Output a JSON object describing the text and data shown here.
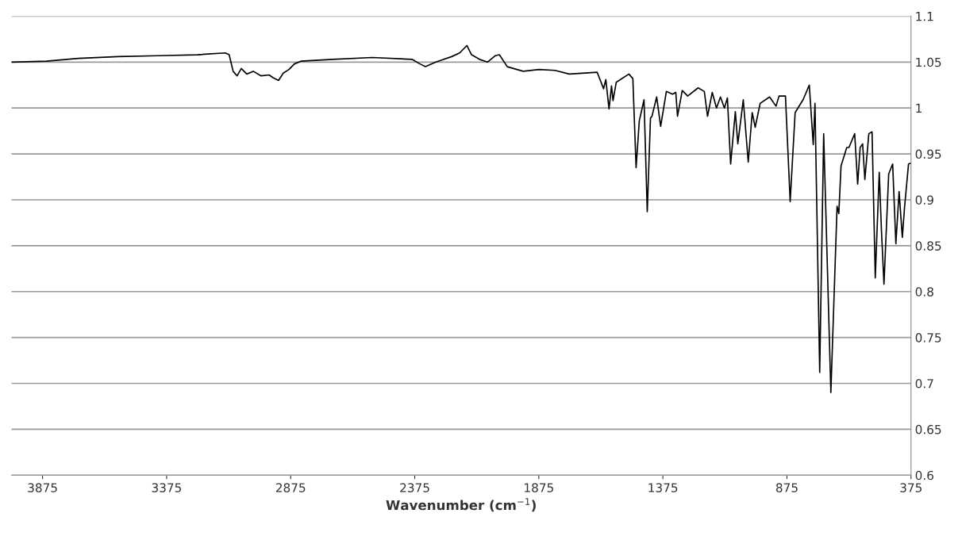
{
  "chart_data": {
    "type": "line",
    "xlabel": "Wavenumber (cm$^{−1}$)",
    "x": [
      4000,
      3859,
      3731,
      3571,
      3411,
      3251,
      3139,
      3123,
      3107,
      3091,
      3074,
      3052,
      3026,
      2994,
      2962,
      2946,
      2924,
      2905,
      2882,
      2860,
      2834,
      2706,
      2546,
      2386,
      2354,
      2332,
      2290,
      2226,
      2194,
      2165,
      2146,
      2114,
      2082,
      2050,
      2034,
      2002,
      1938,
      1874,
      1810,
      1752,
      1640,
      1614,
      1605,
      1592,
      1582,
      1576,
      1563,
      1512,
      1496,
      1483,
      1470,
      1451,
      1438,
      1425,
      1419,
      1400,
      1384,
      1361,
      1336,
      1323,
      1316,
      1297,
      1275,
      1233,
      1208,
      1195,
      1176,
      1159,
      1143,
      1127,
      1115,
      1102,
      1083,
      1073,
      1051,
      1031,
      1015,
      1003,
      983,
      945,
      919,
      907,
      881,
      862,
      842,
      810,
      785,
      769,
      762,
      743,
      727,
      698,
      673,
      666,
      657,
      634,
      625,
      602,
      590,
      580,
      570,
      561,
      545,
      532,
      519,
      503,
      494,
      484,
      465,
      449,
      436,
      423,
      410,
      401,
      385,
      375
    ],
    "series": [
      {
        "color": "#000000",
        "values": [
          1.05,
          1.051,
          1.054,
          1.056,
          1.057,
          1.058,
          1.06,
          1.058,
          1.04,
          1.035,
          1.043,
          1.037,
          1.04,
          1.035,
          1.036,
          1.033,
          1.03,
          1.038,
          1.042,
          1.048,
          1.051,
          1.053,
          1.055,
          1.053,
          1.048,
          1.045,
          1.05,
          1.056,
          1.06,
          1.068,
          1.058,
          1.053,
          1.05,
          1.057,
          1.058,
          1.045,
          1.04,
          1.042,
          1.041,
          1.037,
          1.039,
          1.021,
          1.031,
          0.999,
          1.024,
          1.008,
          1.028,
          1.037,
          1.032,
          0.935,
          0.986,
          1.009,
          0.887,
          0.989,
          0.991,
          1.012,
          0.98,
          1.018,
          1.015,
          1.017,
          0.991,
          1.019,
          1.013,
          1.022,
          1.018,
          0.991,
          1.017,
          1.0,
          1.012,
          1.0,
          1.011,
          0.939,
          0.996,
          0.961,
          1.009,
          0.941,
          0.995,
          0.979,
          1.005,
          1.012,
          1.002,
          1.013,
          1.013,
          0.898,
          0.995,
          1.009,
          1.025,
          0.96,
          1.005,
          0.712,
          0.972,
          0.69,
          0.893,
          0.885,
          0.937,
          0.957,
          0.957,
          0.972,
          0.917,
          0.957,
          0.961,
          0.922,
          0.972,
          0.974,
          0.815,
          0.93,
          0.866,
          0.808,
          0.928,
          0.939,
          0.852,
          0.909,
          0.859,
          0.892,
          0.939,
          0.94
        ]
      }
    ],
    "xlim": [
      4000,
      375
    ],
    "xticks": [
      3875,
      3375,
      2875,
      2375,
      1875,
      1375,
      875,
      375
    ],
    "ylim": [
      0.6,
      1.1
    ],
    "yticks": [
      0.6,
      0.65,
      0.7,
      0.75,
      0.8,
      0.85,
      0.9,
      0.95,
      1,
      1.05,
      1.1
    ],
    "grid": "y",
    "legend": false,
    "marker": "none",
    "line_style": "solid"
  }
}
